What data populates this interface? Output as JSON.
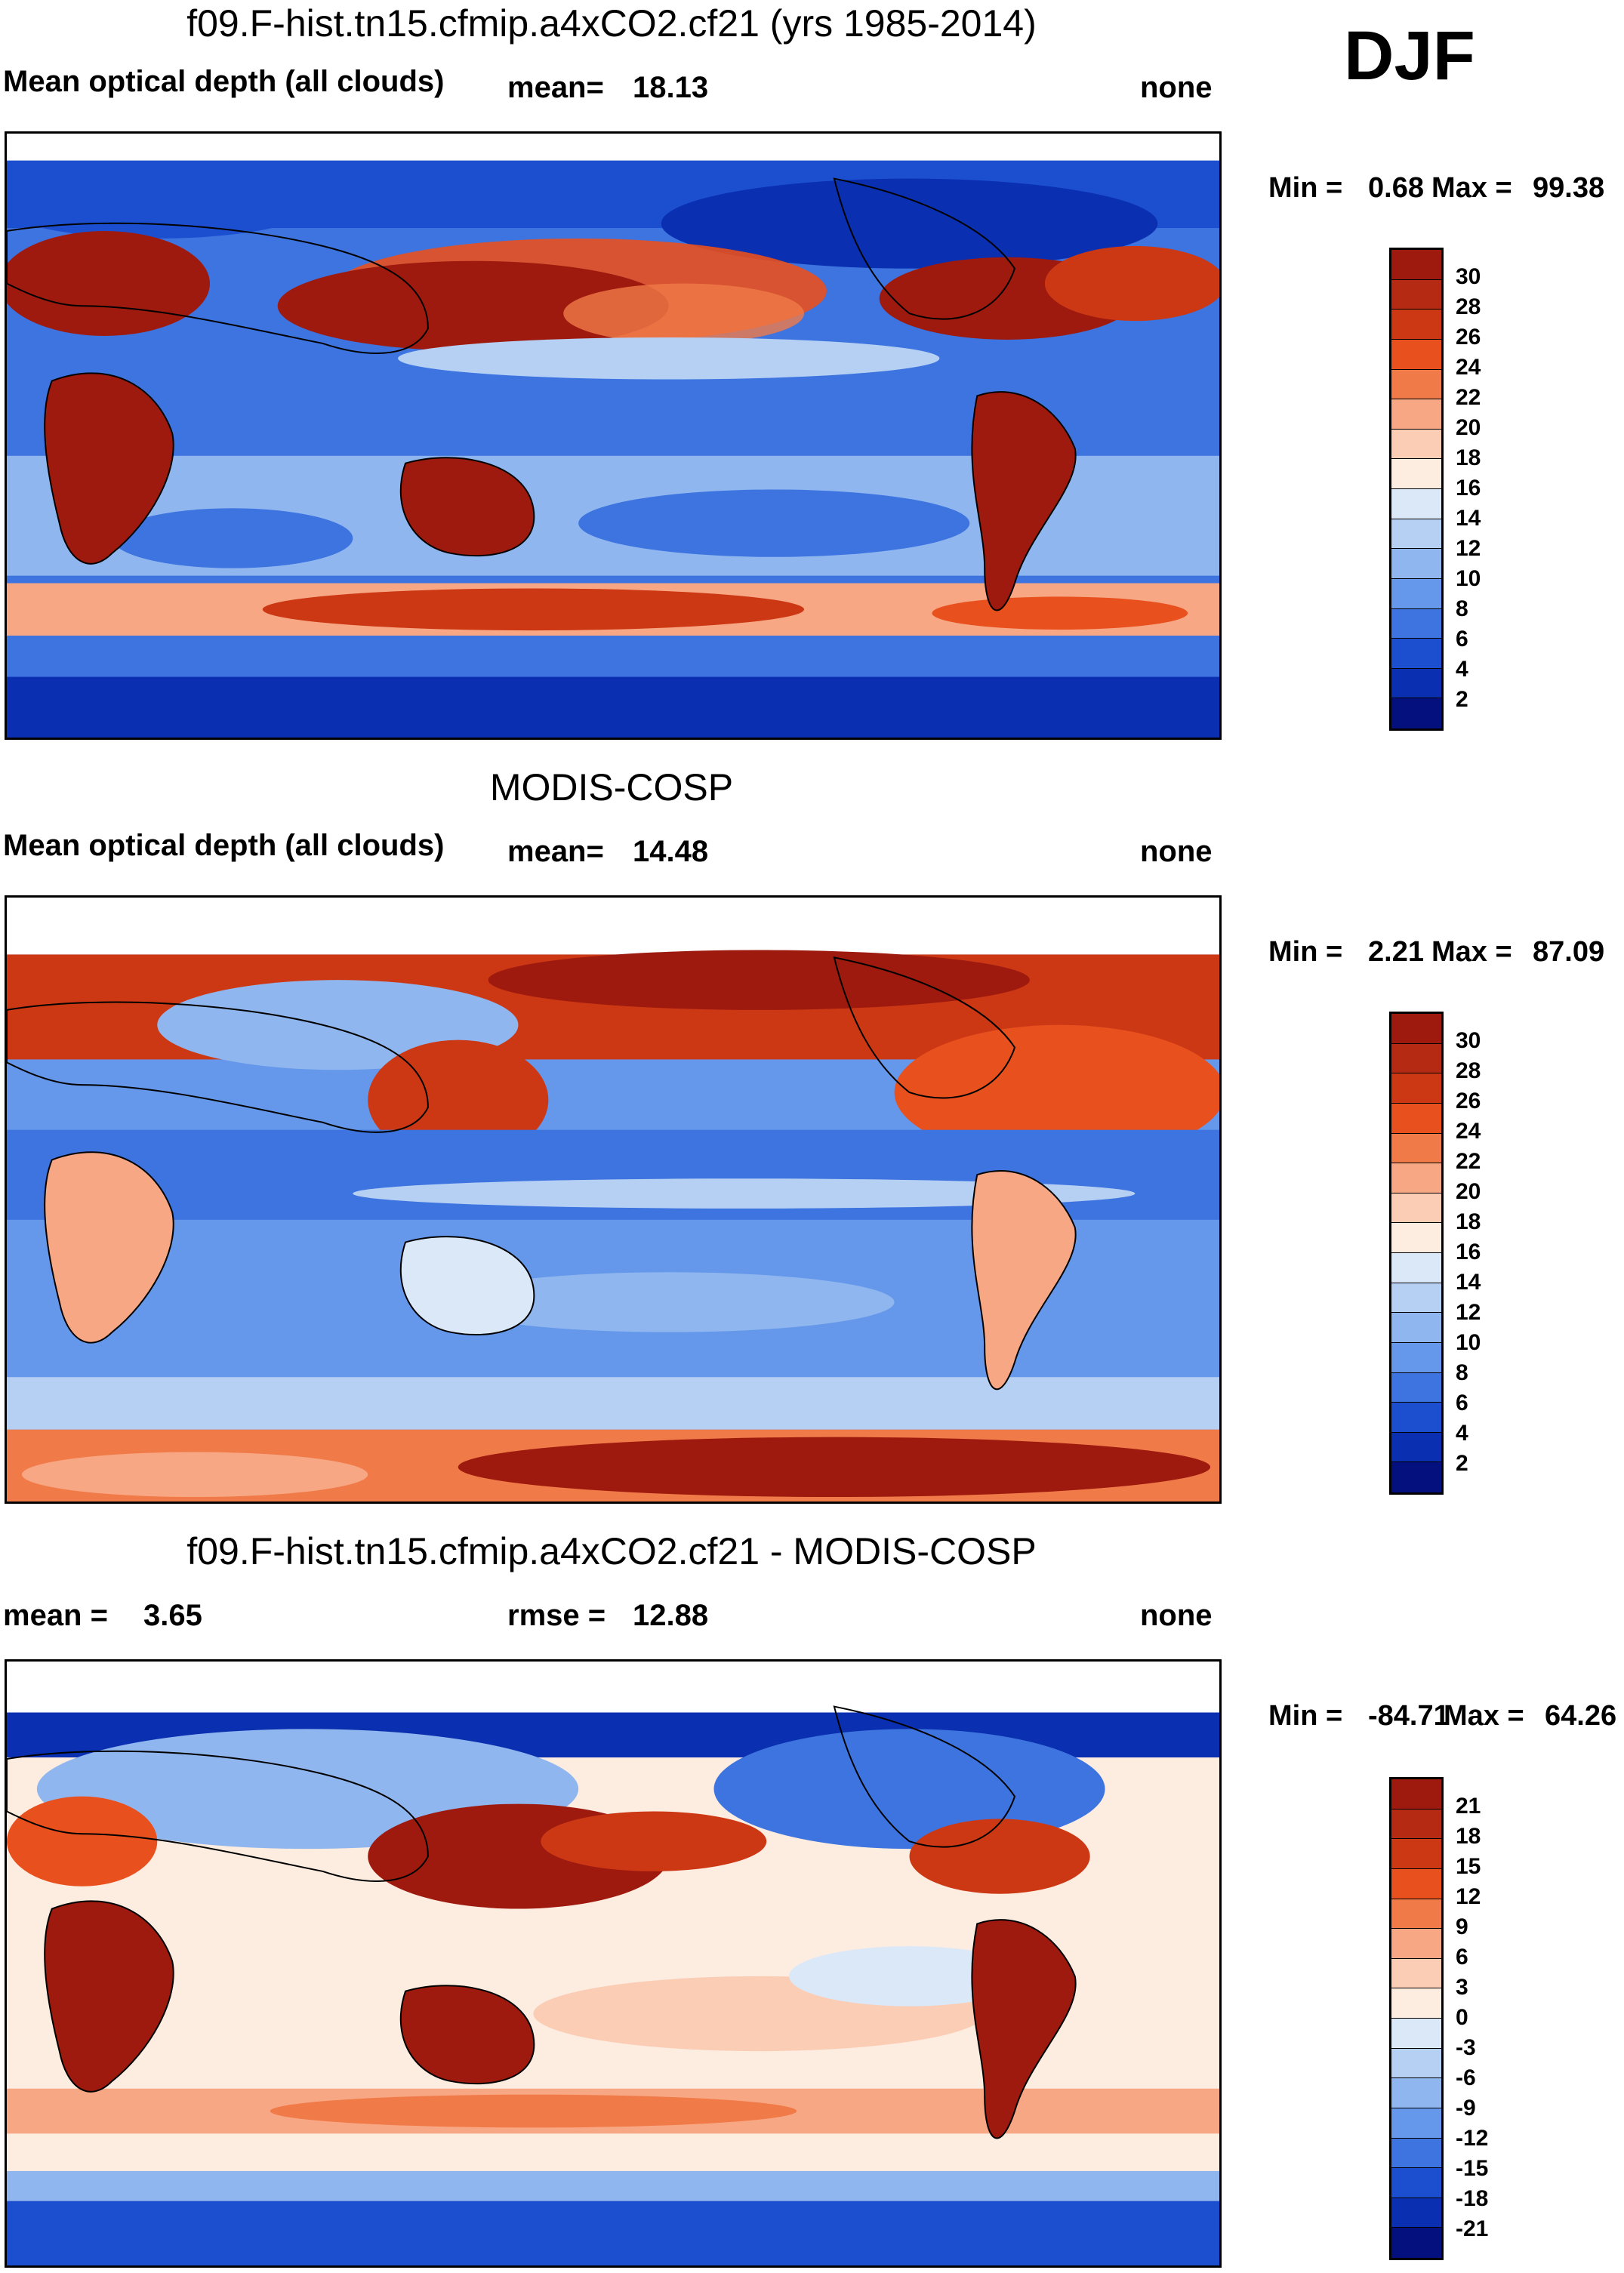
{
  "season": "DJF",
  "panels": [
    {
      "id": "model",
      "title": "f09.F-hist.tn15.cfmip.a4xCO2.cf21 (yrs 1985-2014)",
      "left_label": "Mean optical depth (all clouds)",
      "stat1_label": "",
      "stat1_value": "",
      "stat2_label": "mean=",
      "stat2_value": "18.13",
      "right_label": "none",
      "min_label": "Min =",
      "min_value": "0.68",
      "max_label": "Max =",
      "max_value": "99.38",
      "colorbar_ticks": [
        "30",
        "28",
        "26",
        "24",
        "22",
        "20",
        "18",
        "16",
        "14",
        "12",
        "10",
        "8",
        "6",
        "4",
        "2"
      ],
      "colorbar_colors": [
        "#9e1a0e",
        "#b42a12",
        "#cc3814",
        "#e8501e",
        "#f07a48",
        "#f8a784",
        "#fccdb5",
        "#fdece0",
        "#dbe8f8",
        "#b6d0f4",
        "#8fb6ee",
        "#6598ea",
        "#3d74e0",
        "#1c4fcf",
        "#0a2fb0",
        "#03107e"
      ]
    },
    {
      "id": "obs",
      "title": "MODIS-COSP",
      "left_label": "Mean optical depth (all clouds)",
      "stat1_label": "",
      "stat1_value": "",
      "stat2_label": "mean=",
      "stat2_value": "14.48",
      "right_label": "none",
      "min_label": "Min =",
      "min_value": "2.21",
      "max_label": "Max =",
      "max_value": "87.09",
      "colorbar_ticks": [
        "30",
        "28",
        "26",
        "24",
        "22",
        "20",
        "18",
        "16",
        "14",
        "12",
        "10",
        "8",
        "6",
        "4",
        "2"
      ],
      "colorbar_colors": [
        "#9e1a0e",
        "#b42a12",
        "#cc3814",
        "#e8501e",
        "#f07a48",
        "#f8a784",
        "#fccdb5",
        "#fdece0",
        "#dbe8f8",
        "#b6d0f4",
        "#8fb6ee",
        "#6598ea",
        "#3d74e0",
        "#1c4fcf",
        "#0a2fb0",
        "#03107e"
      ]
    },
    {
      "id": "diff",
      "title": "f09.F-hist.tn15.cfmip.a4xCO2.cf21 - MODIS-COSP",
      "left_label": "",
      "stat1_label": "mean =",
      "stat1_value": "3.65",
      "stat2_label": "rmse =",
      "stat2_value": "12.88",
      "right_label": "none",
      "min_label": "Min =",
      "min_value": "-84.71",
      "max_label": "Max =",
      "max_value": "64.26",
      "colorbar_ticks": [
        "21",
        "18",
        "15",
        "12",
        "9",
        "6",
        "3",
        "0",
        "-3",
        "-6",
        "-9",
        "-12",
        "-15",
        "-18",
        "-21"
      ],
      "colorbar_colors": [
        "#9e1a0e",
        "#b42a12",
        "#cc3814",
        "#e8501e",
        "#f07a48",
        "#f8a784",
        "#fccdb5",
        "#fdece0",
        "#dbe8f8",
        "#b6d0f4",
        "#8fb6ee",
        "#6598ea",
        "#3d74e0",
        "#1c4fcf",
        "#0a2fb0",
        "#03107e"
      ]
    }
  ]
}
